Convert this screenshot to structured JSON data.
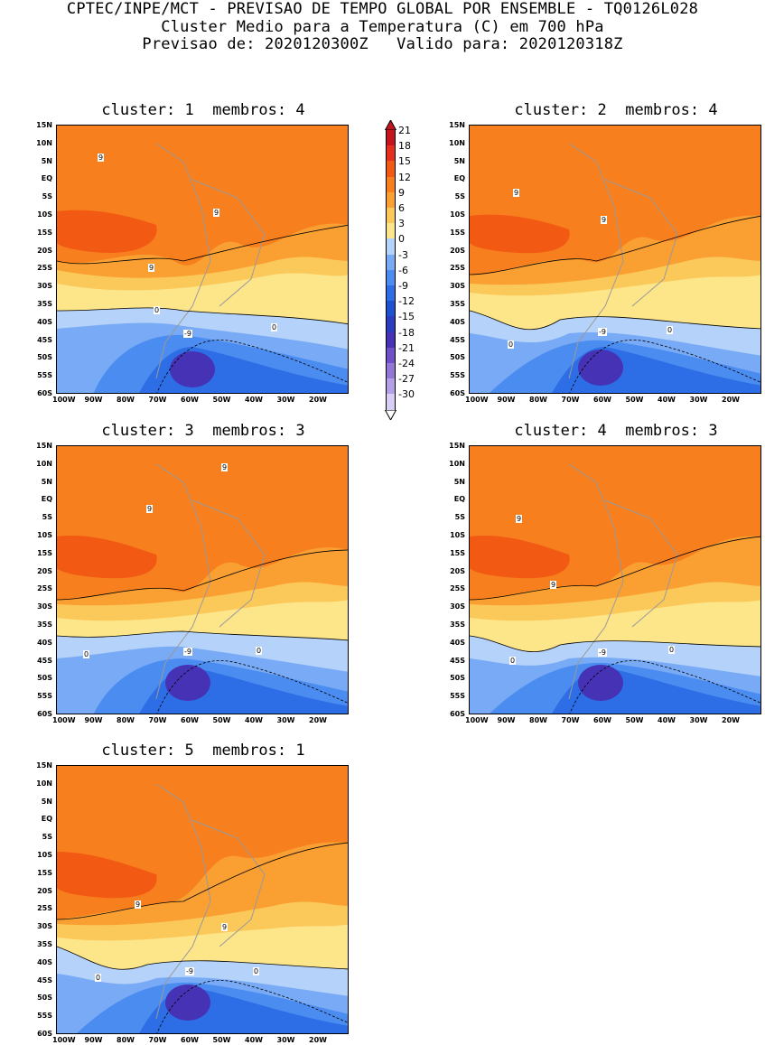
{
  "header": {
    "line1": "CPTEC/INPE/MCT - PREVISAO DE TEMPO GLOBAL POR ENSEMBLE - TQ0126L028",
    "line2": "Cluster Medio para a Temperatura (C) em 700 hPa",
    "line3": "Previsao de: 2020120300Z   Valido para: 2020120318Z"
  },
  "panels": [
    {
      "title": "cluster: 1  membros: 4"
    },
    {
      "title": "cluster: 2  membros: 4"
    },
    {
      "title": "cluster: 3  membros: 3"
    },
    {
      "title": "cluster: 4  membros: 3"
    },
    {
      "title": "cluster: 5  membros: 1"
    }
  ],
  "axes": {
    "lat_labels": [
      "15N",
      "10N",
      "5N",
      "EQ",
      "5S",
      "10S",
      "15S",
      "20S",
      "25S",
      "30S",
      "35S",
      "40S",
      "45S",
      "50S",
      "55S",
      "60S"
    ],
    "lon_labels": [
      "100W",
      "90W",
      "80W",
      "70W",
      "60W",
      "50W",
      "40W",
      "30W",
      "20W"
    ]
  },
  "contour_labels": {
    "nine": "9",
    "zero": "0",
    "minus_nine": "-9"
  },
  "colorbar": {
    "labels": [
      "21",
      "18",
      "15",
      "12",
      "9",
      "6",
      "3",
      "0",
      "-3",
      "-6",
      "-9",
      "-12",
      "-15",
      "-18",
      "-21",
      "-24",
      "-27",
      "-30"
    ],
    "colors": [
      "#c4141e",
      "#e62e1e",
      "#f25a14",
      "#f77f1e",
      "#faa032",
      "#fbc95a",
      "#fde58a",
      "#b4d2fa",
      "#78aaf5",
      "#4b8cf0",
      "#2d6ee6",
      "#1e50d2",
      "#2d3cbe",
      "#4632b4",
      "#6e50c8",
      "#9178d7",
      "#b4a0e6",
      "#d7cdf5"
    ]
  }
}
